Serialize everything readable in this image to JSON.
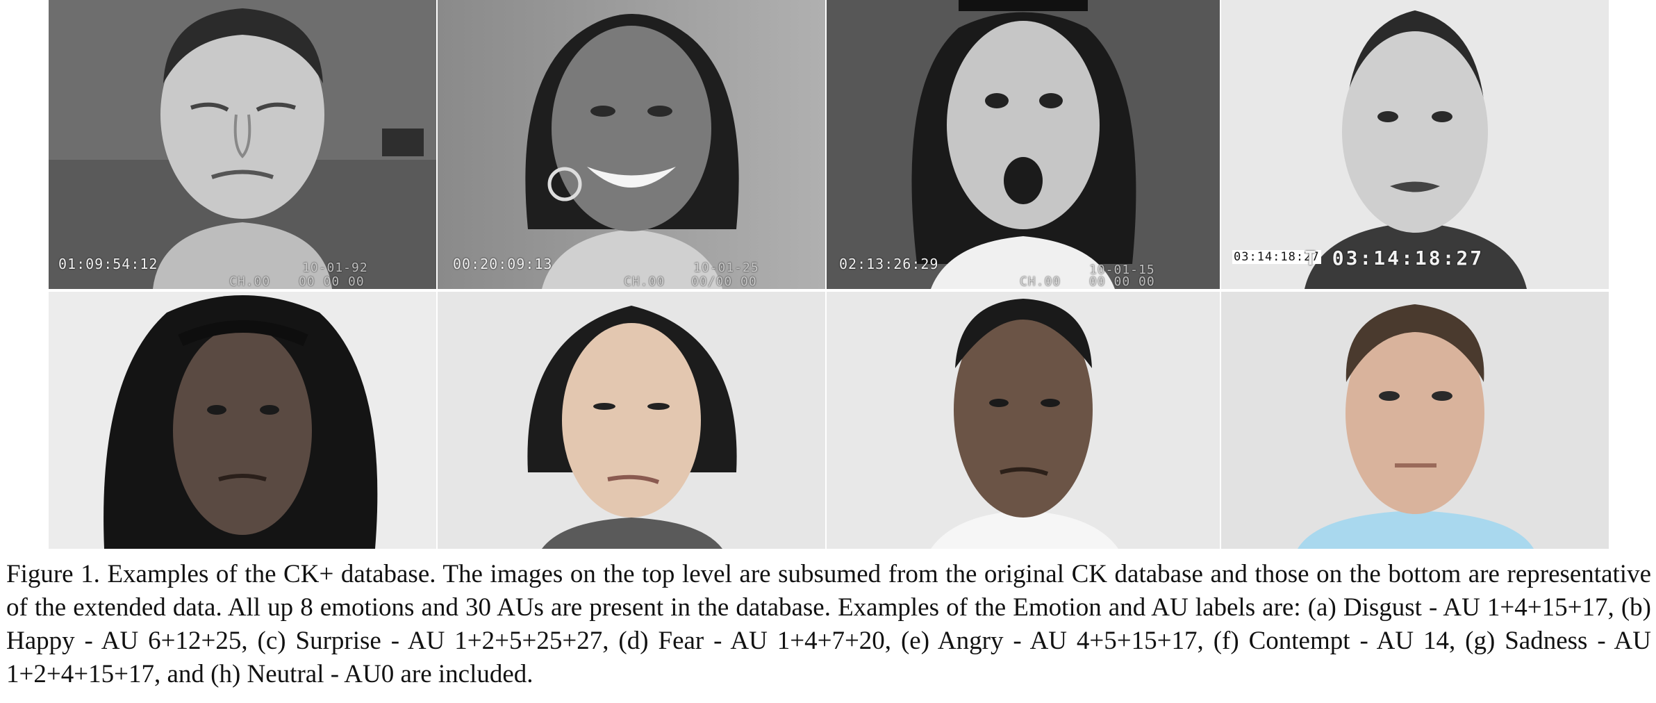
{
  "figure": {
    "caption": "Figure 1. Examples of the CK+ database. The images on the top level are subsumed from the original CK database and those on the bottom are representative of the extended data. All up 8 emotions and 30 AUs are present in the database. Examples of the Emotion and AU labels are: (a) Disgust - AU 1+4+15+17, (b) Happy - AU 6+12+25, (c) Surprise - AU 1+2+5+25+27, (d) Fear - AU 1+4+7+20, (e) Angry - AU 4+5+15+17, (f) Contempt - AU 14, (g) Sadness - AU 1+2+4+15+17, and (h) Neutral - AU0 are included."
  },
  "top_row": [
    {
      "timecode": "01:09:54:12",
      "date": "10-01-92",
      "channel": "CH.00",
      "code": "00 00 00"
    },
    {
      "timecode": "00:20:09:13",
      "date": "10-01-25",
      "channel": "CH.00",
      "code": "00/00 00"
    },
    {
      "timecode": "02:13:26:29",
      "date": "10-01-15",
      "channel": "CH.00",
      "code": "00 00 00"
    },
    {
      "timecode": "03:14:18:27",
      "timecode_large": "T 03:14:18:27"
    }
  ],
  "colors": {
    "caption_text": "#111111",
    "background": "#ffffff",
    "top_row_tone": "grayscale",
    "bottom_row_background": "#e9e9e9"
  }
}
